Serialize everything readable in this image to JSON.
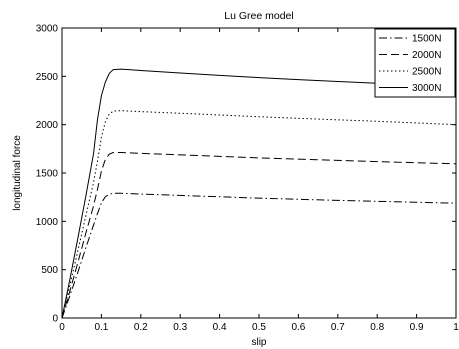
{
  "chart_data": {
    "type": "line",
    "title": "Lu Gree model",
    "xlabel": "slip",
    "ylabel": "longitudinal force",
    "xlim": [
      0,
      1
    ],
    "ylim": [
      0,
      3000
    ],
    "xticks": [
      0,
      0.1,
      0.2,
      0.3,
      0.4,
      0.5,
      0.6,
      0.7,
      0.8,
      0.9,
      1
    ],
    "xtick_labels": [
      "0",
      "0.1",
      "0.2",
      "0.3",
      "0.4",
      "0.5",
      "0.6",
      "0.7",
      "0.8",
      "0.9",
      "1"
    ],
    "yticks": [
      0,
      500,
      1000,
      1500,
      2000,
      2500,
      3000
    ],
    "ytick_labels": [
      "0",
      "500",
      "1000",
      "1500",
      "2000",
      "2500",
      "3000"
    ],
    "grid": false,
    "legend_position": "top-right",
    "series": [
      {
        "name": "1500N",
        "style": "dashdot",
        "color": "#000000",
        "points": [
          [
            0,
            0
          ],
          [
            0.02,
            230
          ],
          [
            0.04,
            470
          ],
          [
            0.06,
            720
          ],
          [
            0.08,
            960
          ],
          [
            0.09,
            1080
          ],
          [
            0.1,
            1190
          ],
          [
            0.11,
            1255
          ],
          [
            0.12,
            1280
          ],
          [
            0.13,
            1290
          ],
          [
            0.15,
            1290
          ],
          [
            0.2,
            1282
          ],
          [
            0.3,
            1268
          ],
          [
            0.4,
            1254
          ],
          [
            0.5,
            1240
          ],
          [
            0.6,
            1228
          ],
          [
            0.7,
            1217
          ],
          [
            0.8,
            1207
          ],
          [
            0.9,
            1197
          ],
          [
            1.0,
            1188
          ]
        ]
      },
      {
        "name": "2000N",
        "style": "dashed",
        "color": "#000000",
        "points": [
          [
            0,
            0
          ],
          [
            0.02,
            280
          ],
          [
            0.04,
            570
          ],
          [
            0.06,
            870
          ],
          [
            0.08,
            1160
          ],
          [
            0.09,
            1330
          ],
          [
            0.1,
            1520
          ],
          [
            0.11,
            1640
          ],
          [
            0.12,
            1695
          ],
          [
            0.13,
            1712
          ],
          [
            0.15,
            1712
          ],
          [
            0.2,
            1703
          ],
          [
            0.3,
            1688
          ],
          [
            0.4,
            1672
          ],
          [
            0.5,
            1656
          ],
          [
            0.6,
            1643
          ],
          [
            0.7,
            1630
          ],
          [
            0.8,
            1618
          ],
          [
            0.9,
            1606
          ],
          [
            1.0,
            1595
          ]
        ]
      },
      {
        "name": "2500N",
        "style": "dotted",
        "color": "#000000",
        "points": [
          [
            0,
            0
          ],
          [
            0.02,
            340
          ],
          [
            0.04,
            690
          ],
          [
            0.06,
            1050
          ],
          [
            0.08,
            1400
          ],
          [
            0.09,
            1620
          ],
          [
            0.1,
            1870
          ],
          [
            0.11,
            2030
          ],
          [
            0.12,
            2110
          ],
          [
            0.13,
            2140
          ],
          [
            0.15,
            2145
          ],
          [
            0.2,
            2135
          ],
          [
            0.3,
            2118
          ],
          [
            0.4,
            2100
          ],
          [
            0.5,
            2082
          ],
          [
            0.6,
            2066
          ],
          [
            0.7,
            2050
          ],
          [
            0.8,
            2035
          ],
          [
            0.9,
            2018
          ],
          [
            1.0,
            2000
          ]
        ]
      },
      {
        "name": "3000N",
        "style": "solid",
        "color": "#000000",
        "points": [
          [
            0,
            0
          ],
          [
            0.02,
            400
          ],
          [
            0.04,
            820
          ],
          [
            0.06,
            1250
          ],
          [
            0.08,
            1700
          ],
          [
            0.09,
            2050
          ],
          [
            0.1,
            2300
          ],
          [
            0.11,
            2440
          ],
          [
            0.12,
            2530
          ],
          [
            0.13,
            2570
          ],
          [
            0.15,
            2575
          ],
          [
            0.2,
            2560
          ],
          [
            0.3,
            2535
          ],
          [
            0.4,
            2510
          ],
          [
            0.5,
            2487
          ],
          [
            0.6,
            2466
          ],
          [
            0.7,
            2447
          ],
          [
            0.8,
            2428
          ],
          [
            0.9,
            2410
          ],
          [
            1.0,
            2392
          ]
        ]
      }
    ]
  }
}
